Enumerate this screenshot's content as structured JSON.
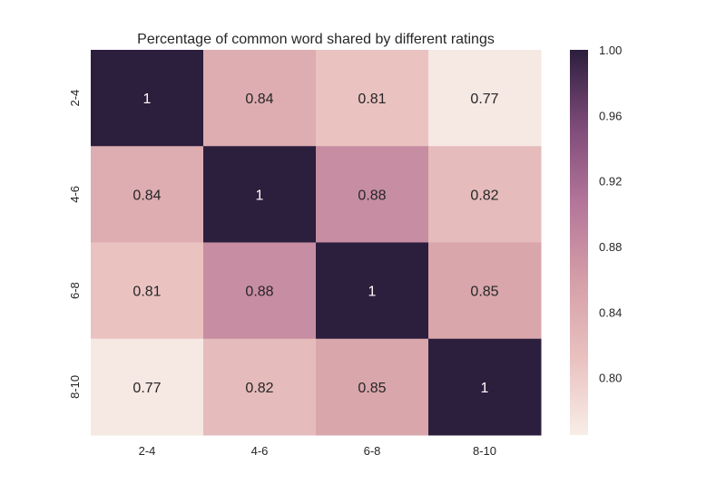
{
  "chart_data": {
    "type": "heatmap",
    "title": "Percentage of common word shared by different ratings",
    "xlabel": "",
    "ylabel": "",
    "x_categories": [
      "2-4",
      "4-6",
      "6-8",
      "8-10"
    ],
    "y_categories": [
      "2-4",
      "4-6",
      "6-8",
      "8-10"
    ],
    "values": [
      [
        1,
        0.84,
        0.81,
        0.77
      ],
      [
        0.84,
        1,
        0.88,
        0.82
      ],
      [
        0.81,
        0.88,
        1,
        0.85
      ],
      [
        0.77,
        0.82,
        0.85,
        1
      ]
    ],
    "cell_labels": [
      [
        "1",
        "0.84",
        "0.81",
        "0.77"
      ],
      [
        "0.84",
        "1",
        "0.88",
        "0.82"
      ],
      [
        "0.81",
        "0.88",
        "1",
        "0.85"
      ],
      [
        "0.77",
        "0.82",
        "0.85",
        "1"
      ]
    ],
    "colorbar": {
      "vmin": 0.765,
      "vmax": 1.0,
      "ticks": [
        1.0,
        0.96,
        0.92,
        0.88,
        0.84,
        0.8
      ],
      "tick_labels": [
        "1.00",
        "0.96",
        "0.92",
        "0.88",
        "0.84",
        "0.80"
      ],
      "colors": [
        "#f8ede7",
        "#e9c1bf",
        "#d59fa8",
        "#b5769a",
        "#7e4b79",
        "#2c1e3d"
      ]
    },
    "grid": false,
    "legend": "colorbar-right"
  }
}
